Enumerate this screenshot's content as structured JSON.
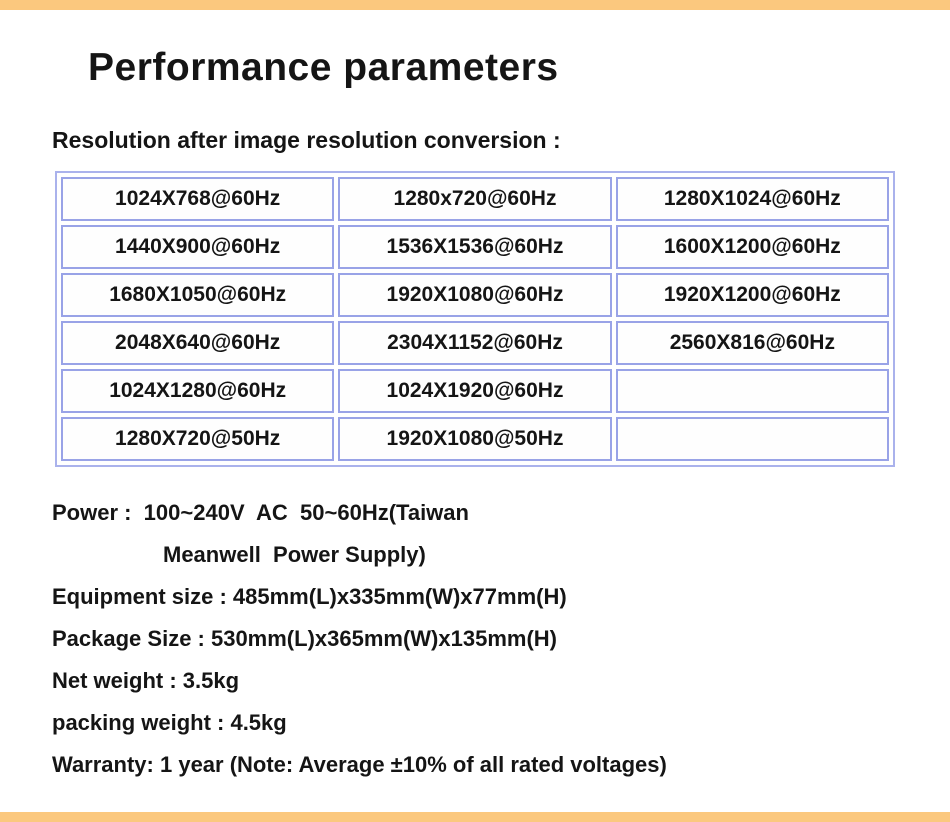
{
  "page": {
    "title": "Performance parameters",
    "table_heading": "Resolution after image resolution conversion :"
  },
  "resolution_table": {
    "rows": [
      [
        "1024X768@60Hz",
        "1280x720@60Hz",
        "1280X1024@60Hz"
      ],
      [
        "1440X900@60Hz",
        "1536X1536@60Hz",
        "1600X1200@60Hz"
      ],
      [
        "1680X1050@60Hz",
        "1920X1080@60Hz",
        "1920X1200@60Hz"
      ],
      [
        "2048X640@60Hz",
        "2304X1152@60Hz",
        "2560X816@60Hz"
      ],
      [
        "1024X1280@60Hz",
        "1024X1920@60Hz",
        ""
      ],
      [
        "1280X720@50Hz",
        "1920X1080@50Hz",
        ""
      ]
    ]
  },
  "specs": {
    "power_line1": "Power :  100~240V  AC  50~60Hz(Taiwan",
    "power_line2": "Meanwell  Power Supply)",
    "equipment_size": "Equipment size : 485mm(L)x335mm(W)x77mm(H)",
    "package_size": "Package Size : 530mm(L)x365mm(W)x135mm(H)",
    "net_weight": "Net weight : 3.5kg",
    "packing_weight": "packing weight : 4.5kg",
    "warranty": "Warranty: 1 year (Note: Average ±10% of all rated voltages)"
  },
  "colors": {
    "accent_bar": "#fbc87e",
    "table_outer_border": "#aab2ec",
    "table_cell_border": "#99a3e7",
    "text": "#151515"
  }
}
